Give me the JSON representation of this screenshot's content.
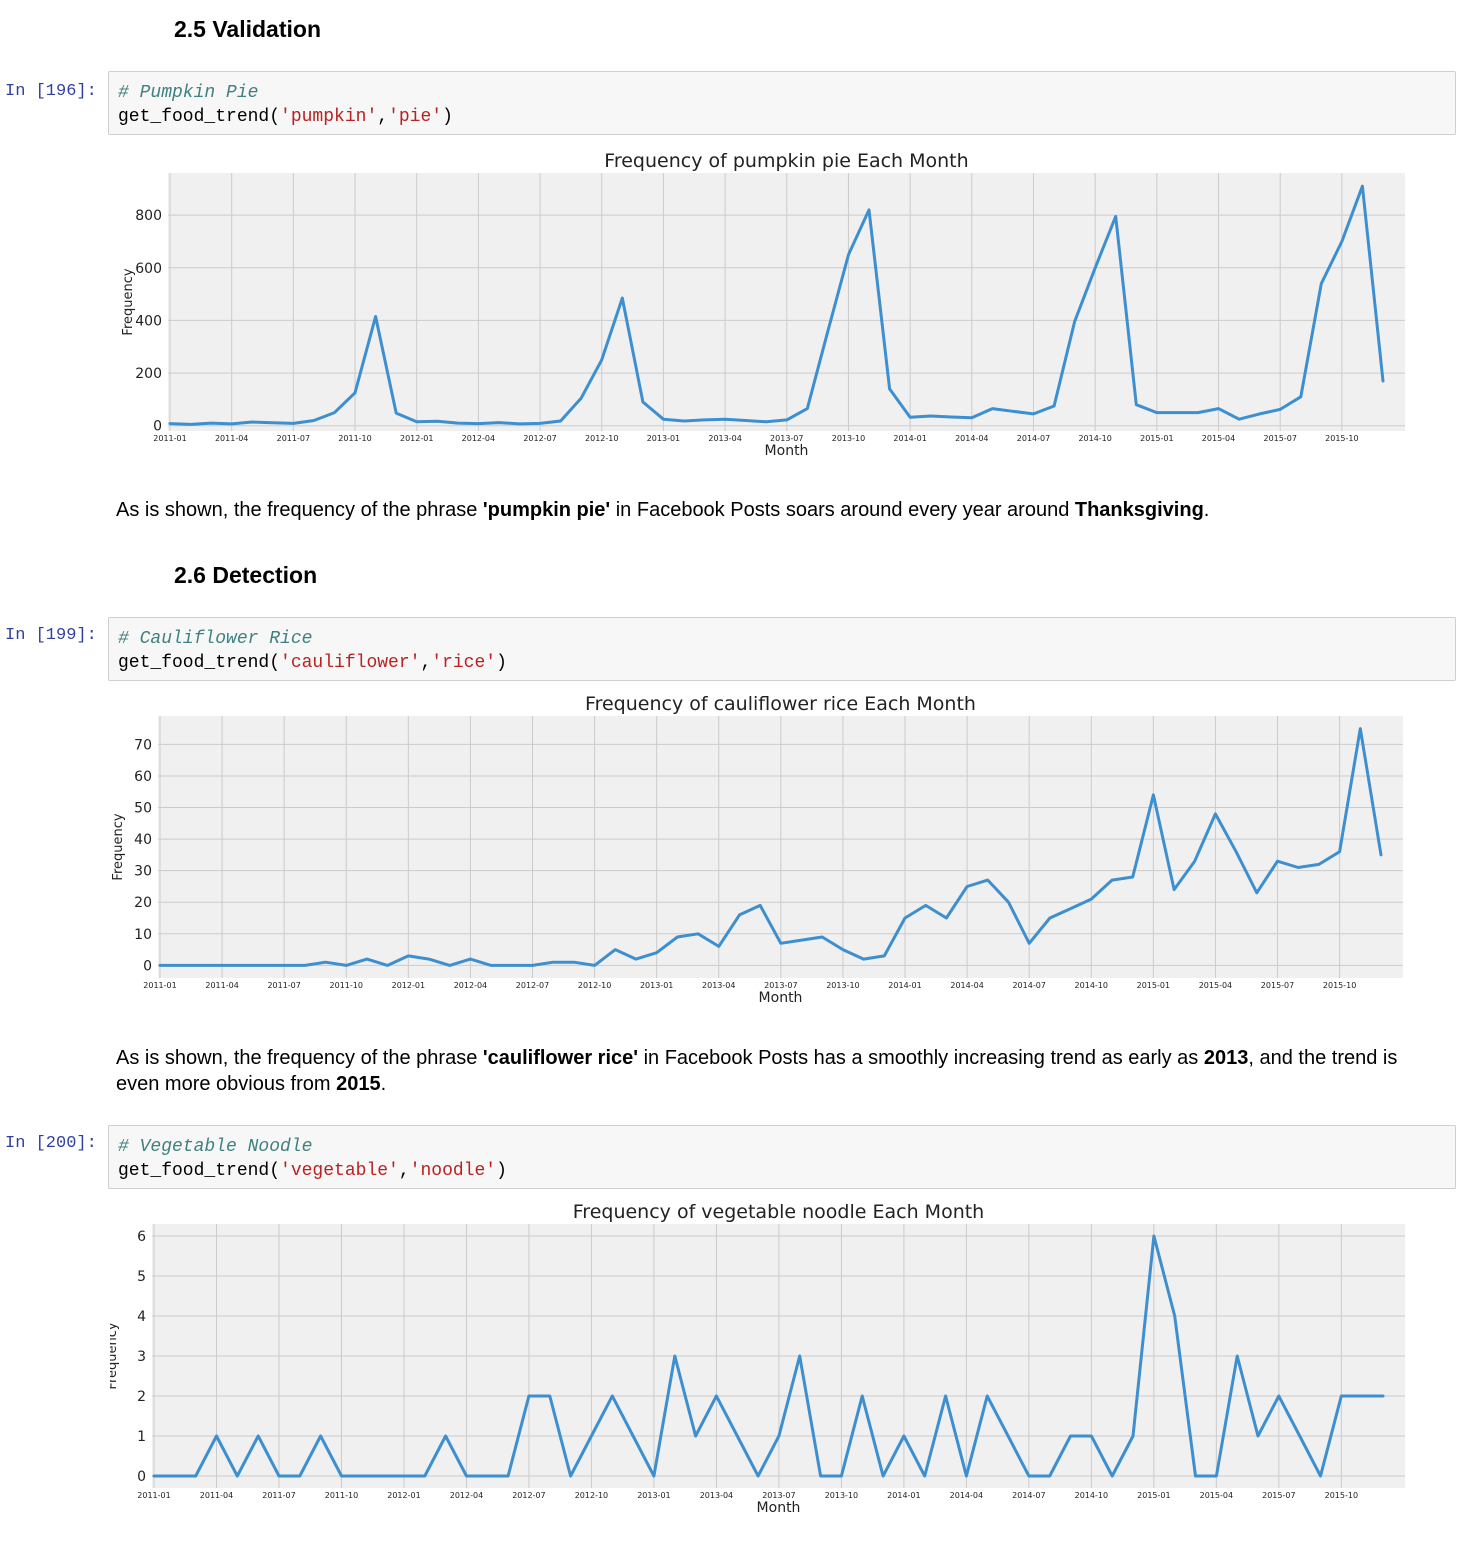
{
  "sections": [
    {
      "heading": "2.5 Validation"
    },
    {
      "heading": "2.6 Detection"
    }
  ],
  "cells": [
    {
      "prompt": "In [196]:",
      "comment": "# Pumpkin Pie",
      "func": "get_food_trend(",
      "arg1": "'pumpkin'",
      "sep": ",",
      "arg2": "'pie'",
      "close": ")"
    },
    {
      "prompt": "In [199]:",
      "comment": "# Cauliflower Rice",
      "func": "get_food_trend(",
      "arg1": "'cauliflower'",
      "sep": ",",
      "arg2": "'rice'",
      "close": ")"
    },
    {
      "prompt": "In [200]:",
      "comment": "# Vegetable Noodle",
      "func": "get_food_trend(",
      "arg1": "'vegetable'",
      "sep": ",",
      "arg2": "'noodle'",
      "close": ")"
    }
  ],
  "markdown": [
    {
      "t1": "As is shown, the frequency of the phrase ",
      "b1": "'pumpkin pie'",
      "t2": " in Facebook Posts soars around every year around ",
      "b2": "Thanksgiving",
      "t3": "."
    },
    {
      "t1": "As is shown, the frequency of the phrase ",
      "b1": "'cauliflower rice'",
      "t2": " in Facebook Posts has a smoothly increasing trend as early as ",
      "b2": "2013",
      "t3": ", and the trend is even more obvious from ",
      "b3": "2015",
      "t4": "."
    }
  ],
  "colors": {
    "line": "#3d8fcf",
    "plot_bg": "#f0f0f0",
    "grid": "#cbcbcb"
  },
  "chart_data": [
    {
      "type": "line",
      "title": "Frequency of pumpkin pie Each Month",
      "xlabel": "Month",
      "ylabel": "Frequency",
      "ylim": [
        -20,
        960
      ],
      "yticks": [
        0,
        200,
        400,
        600,
        800
      ],
      "xticks": [
        "2011-01",
        "2011-04",
        "2011-07",
        "2011-10",
        "2012-01",
        "2012-04",
        "2012-07",
        "2012-10",
        "2013-01",
        "2013-04",
        "2013-07",
        "2013-10",
        "2014-01",
        "2014-04",
        "2014-07",
        "2014-10",
        "2015-01",
        "2015-04",
        "2015-07",
        "2015-10"
      ],
      "grid": true,
      "series": [
        {
          "values": [
            8,
            5,
            10,
            7,
            14,
            11,
            9,
            20,
            50,
            125,
            415,
            48,
            15,
            17,
            10,
            8,
            12,
            7,
            9,
            18,
            105,
            250,
            485,
            90,
            25,
            18,
            22,
            25,
            20,
            15,
            22,
            65,
            360,
            650,
            820,
            140,
            32,
            37,
            33,
            30,
            65,
            55,
            45,
            75,
            395,
            600,
            795,
            80,
            50,
            50,
            50,
            65,
            25,
            45,
            62,
            110,
            540,
            700,
            910,
            170
          ]
        }
      ]
    },
    {
      "type": "line",
      "title": "Frequency of cauliflower rice Each Month",
      "xlabel": "Month",
      "ylabel": "Frequency",
      "ylim": [
        -4,
        79
      ],
      "yticks": [
        0,
        10,
        20,
        30,
        40,
        50,
        60,
        70
      ],
      "xticks": [
        "2011-01",
        "2011-04",
        "2011-07",
        "2011-10",
        "2012-01",
        "2012-04",
        "2012-07",
        "2012-10",
        "2013-01",
        "2013-04",
        "2013-07",
        "2013-10",
        "2014-01",
        "2014-04",
        "2014-07",
        "2014-10",
        "2015-01",
        "2015-04",
        "2015-07",
        "2015-10"
      ],
      "grid": true,
      "series": [
        {
          "values": [
            0,
            0,
            0,
            0,
            0,
            0,
            0,
            0,
            1,
            0,
            2,
            0,
            3,
            2,
            0,
            2,
            0,
            0,
            0,
            1,
            1,
            0,
            5,
            2,
            4,
            9,
            10,
            6,
            16,
            19,
            7,
            8,
            9,
            5,
            2,
            3,
            15,
            19,
            15,
            25,
            27,
            20,
            7,
            15,
            18,
            21,
            27,
            28,
            54,
            24,
            33,
            48,
            36,
            23,
            33,
            31,
            32,
            36,
            75,
            35
          ]
        }
      ]
    },
    {
      "type": "line",
      "title": "Frequency of vegetable noodle Each Month",
      "xlabel": "Month",
      "ylabel": "Frequency",
      "ylim": [
        -0.3,
        6.3
      ],
      "yticks": [
        0,
        1,
        2,
        3,
        4,
        5,
        6
      ],
      "xticks": [
        "2011-01",
        "2011-04",
        "2011-07",
        "2011-10",
        "2012-01",
        "2012-04",
        "2012-07",
        "2012-10",
        "2013-01",
        "2013-04",
        "2013-07",
        "2013-10",
        "2014-01",
        "2014-04",
        "2014-07",
        "2014-10",
        "2015-01",
        "2015-04",
        "2015-07",
        "2015-10"
      ],
      "grid": true,
      "series": [
        {
          "values": [
            0,
            0,
            0,
            1,
            0,
            1,
            0,
            0,
            1,
            0,
            0,
            0,
            0,
            0,
            1,
            0,
            0,
            0,
            2,
            2,
            0,
            1,
            2,
            1,
            0,
            3,
            1,
            2,
            1,
            0,
            1,
            3,
            0,
            0,
            2,
            0,
            1,
            0,
            2,
            0,
            2,
            1,
            0,
            0,
            1,
            1,
            0,
            1,
            6,
            4,
            0,
            0,
            3,
            1,
            2,
            1,
            0,
            2,
            2,
            2
          ]
        }
      ]
    }
  ]
}
